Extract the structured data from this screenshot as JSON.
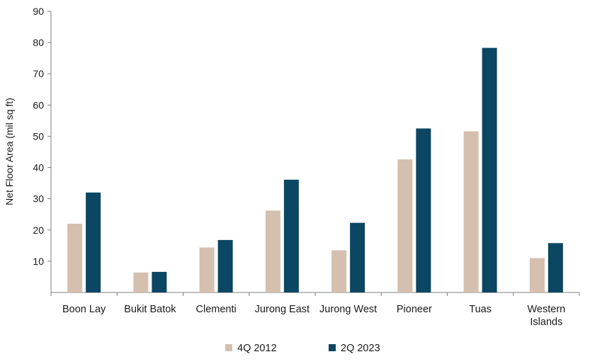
{
  "chart_data": {
    "type": "bar",
    "title": "",
    "xlabel": "",
    "ylabel": "Net Floor Area (mil sq ft)",
    "ylim": [
      0,
      90
    ],
    "yticks": [
      10,
      20,
      30,
      40,
      50,
      60,
      70,
      80,
      90
    ],
    "categories": [
      "Boon Lay",
      "Bukit Batok",
      "Clementi",
      "Jurong East",
      "Jurong West",
      "Pioneer",
      "Tuas",
      "Western Islands"
    ],
    "series": [
      {
        "name": "4Q 2012",
        "color": "#d5bfaf",
        "values": [
          22,
          6.4,
          14.4,
          26.2,
          13.5,
          42.6,
          51.6,
          11
        ]
      },
      {
        "name": "2Q 2023",
        "color": "#0b4662",
        "values": [
          32,
          6.6,
          16.8,
          36.1,
          22.3,
          52.5,
          78.3,
          15.8
        ]
      }
    ],
    "grid": false,
    "legend": "bottom-center"
  }
}
